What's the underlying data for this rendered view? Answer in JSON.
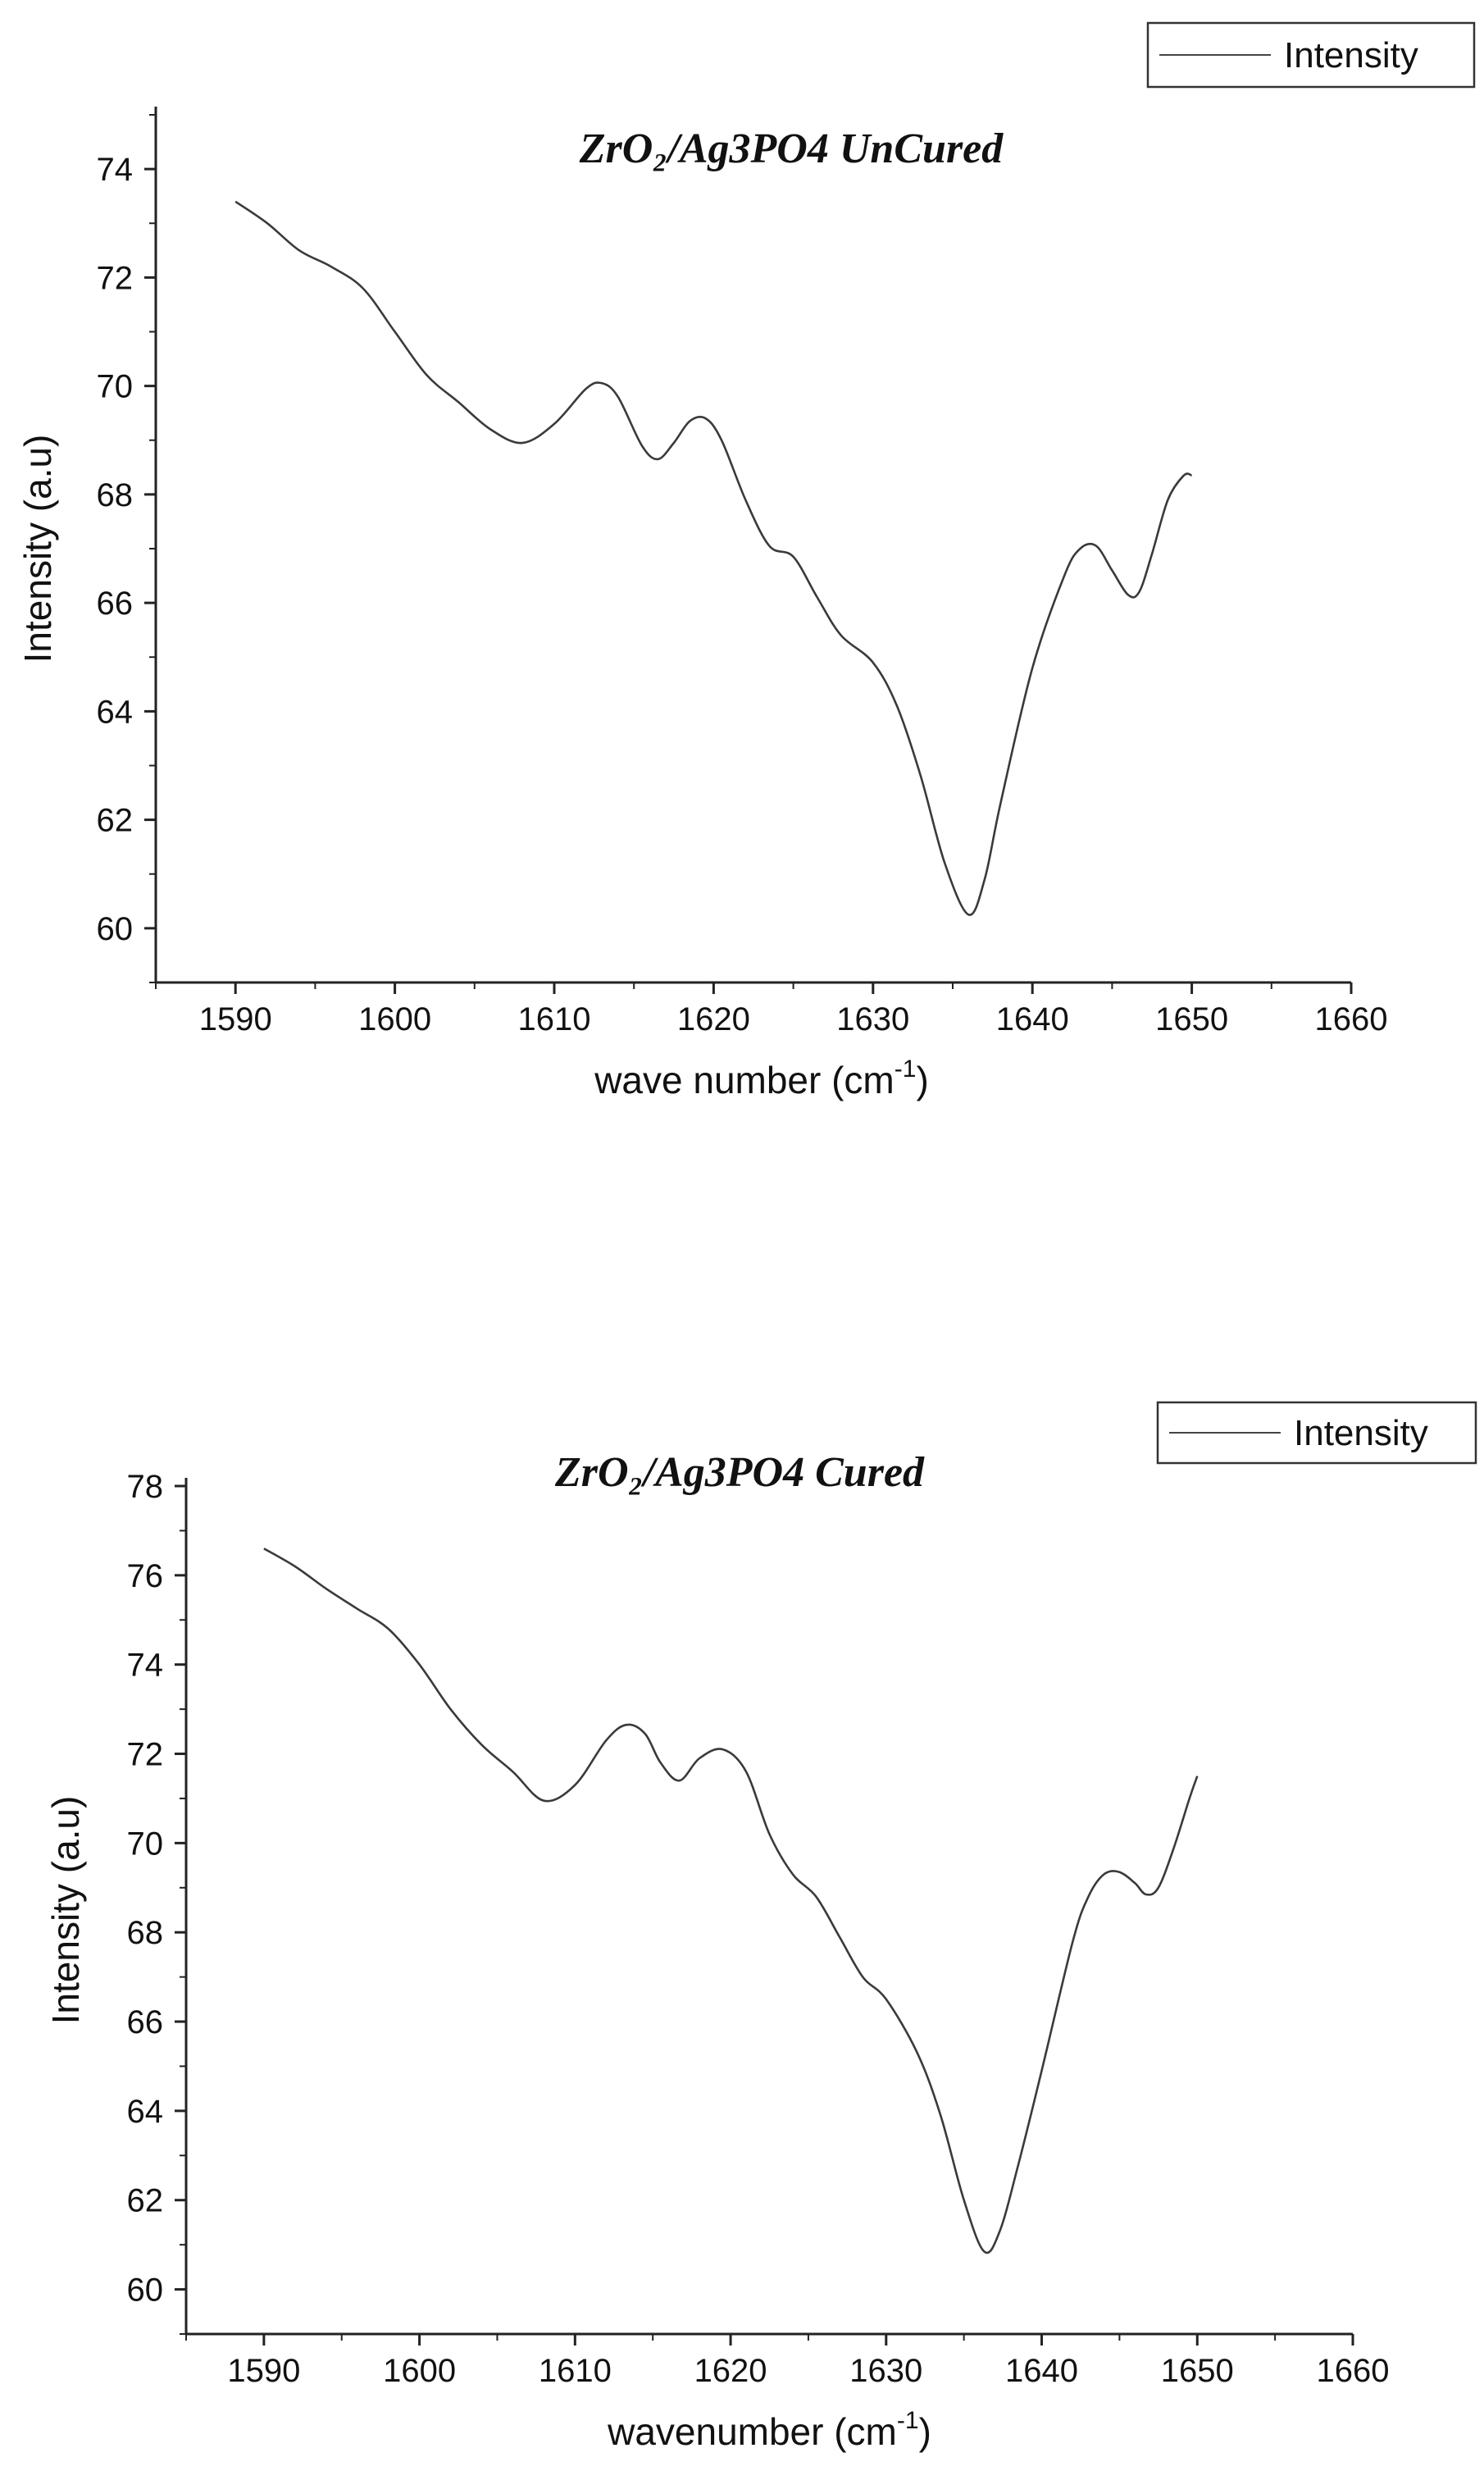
{
  "chart_data": [
    {
      "type": "line",
      "title": "ZrO₂/Ag3PO4 UnCured",
      "xlabel": "wave number (cm",
      "xlabel_sup": "-1",
      "xlabel_tail": ")",
      "ylabel": "Intensity (a.u)",
      "legend": "Intensity",
      "legend_position": "top-right",
      "xlim": [
        1585,
        1660
      ],
      "ylim": [
        59,
        75
      ],
      "xticks": [
        1590,
        1600,
        1610,
        1620,
        1630,
        1640,
        1650,
        1660
      ],
      "yticks": [
        60,
        62,
        64,
        66,
        68,
        70,
        72,
        74
      ],
      "grid": false,
      "series": [
        {
          "name": "Intensity",
          "x": [
            1590,
            1592,
            1594,
            1596,
            1598,
            1600,
            1602,
            1604,
            1606,
            1608,
            1610,
            1612,
            1613,
            1614,
            1615.5,
            1616.5,
            1617.5,
            1618.5,
            1619.5,
            1620.5,
            1622,
            1623.5,
            1625,
            1626.5,
            1628,
            1630,
            1631.5,
            1633,
            1634.5,
            1636,
            1637,
            1638,
            1640,
            1642,
            1643,
            1644,
            1645,
            1646,
            1646.7,
            1647.5,
            1648.5,
            1649.5,
            1650
          ],
          "y": [
            73.4,
            73.0,
            72.5,
            72.2,
            71.8,
            71.0,
            70.2,
            69.7,
            69.2,
            68.95,
            69.3,
            69.95,
            70.05,
            69.8,
            68.9,
            68.65,
            68.95,
            69.35,
            69.4,
            69.0,
            67.9,
            67.05,
            66.85,
            66.1,
            65.4,
            64.9,
            64.1,
            62.8,
            61.2,
            60.25,
            60.9,
            62.3,
            64.8,
            66.5,
            67.0,
            67.05,
            66.6,
            66.15,
            66.2,
            66.9,
            67.9,
            68.35,
            68.35
          ]
        }
      ]
    },
    {
      "type": "line",
      "title": "ZrO₂/Ag3PO4 Cured",
      "xlabel": "wavenumber (cm",
      "xlabel_sup": "-1",
      "xlabel_tail": ")",
      "ylabel": "Intensity (a.u)",
      "legend": "Intensity",
      "legend_position": "top-right",
      "xlim": [
        1585,
        1660
      ],
      "ylim": [
        59,
        78
      ],
      "xticks": [
        1590,
        1600,
        1610,
        1620,
        1630,
        1640,
        1650,
        1660
      ],
      "yticks": [
        60,
        62,
        64,
        66,
        68,
        70,
        72,
        74,
        76,
        78
      ],
      "grid": false,
      "series": [
        {
          "name": "Intensity",
          "x": [
            1590,
            1592,
            1594,
            1596,
            1598,
            1600,
            1602,
            1604,
            1606,
            1608,
            1610,
            1612,
            1613.3,
            1614.5,
            1615.5,
            1616.7,
            1618,
            1619.5,
            1621,
            1622.5,
            1624,
            1625.5,
            1627,
            1628.5,
            1630,
            1632,
            1633.5,
            1635,
            1636.3,
            1637.3,
            1638.5,
            1640,
            1642,
            1643,
            1644,
            1645,
            1646,
            1646.7,
            1647.5,
            1648.5,
            1649.5,
            1650
          ],
          "y": [
            76.6,
            76.2,
            75.7,
            75.25,
            74.8,
            74.0,
            73.0,
            72.2,
            71.6,
            70.95,
            71.3,
            72.3,
            72.65,
            72.45,
            71.8,
            71.4,
            71.9,
            72.1,
            71.6,
            70.2,
            69.3,
            68.8,
            67.9,
            67.0,
            66.5,
            65.3,
            63.9,
            62.0,
            60.85,
            61.3,
            62.8,
            64.9,
            67.8,
            68.8,
            69.3,
            69.35,
            69.1,
            68.85,
            69.0,
            69.9,
            71.0,
            71.5
          ]
        }
      ]
    }
  ]
}
